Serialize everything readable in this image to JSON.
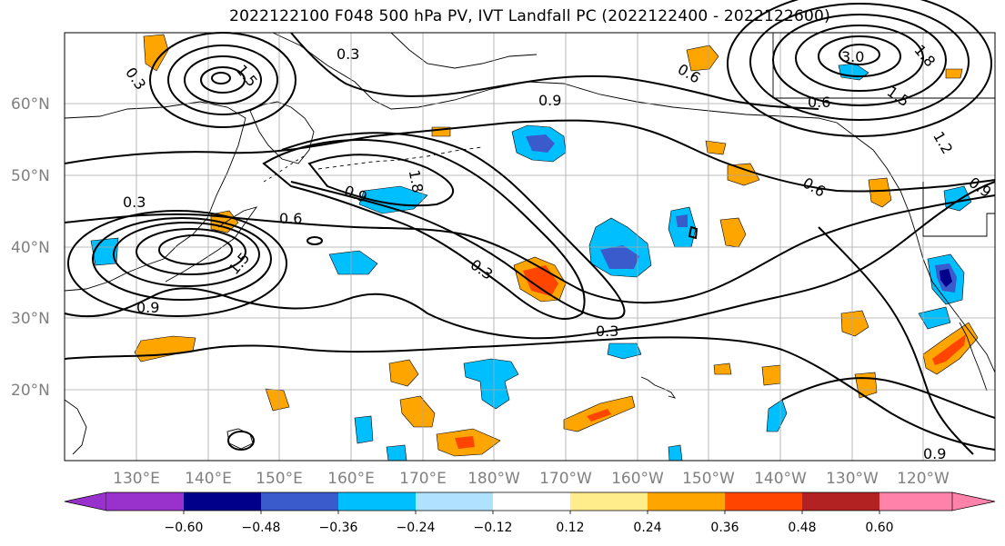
{
  "title": "2022122100 F048 500 hPa PV, IVT Landfall PC (2022122400 - 2022122600)",
  "lat_labels": [
    "60°N",
    "50°N",
    "40°N",
    "30°N",
    "20°N"
  ],
  "lon_labels": [
    "130°E",
    "140°E",
    "150°E",
    "160°E",
    "170°E",
    "180°W",
    "170°W",
    "160°W",
    "150°W",
    "140°W",
    "130°W",
    "120°W"
  ],
  "colorbar": {
    "ticks": [
      "−0.60",
      "−0.48",
      "−0.36",
      "−0.24",
      "−0.12",
      "0.12",
      "0.24",
      "0.36",
      "0.48",
      "0.60"
    ],
    "colors": [
      "#9932cc",
      "#00008b",
      "#3a5bcc",
      "#00bfff",
      "#b0e2ff",
      "#ffffff",
      "#ffec8b",
      "#ffa500",
      "#ff4500",
      "#b22222",
      "#ff82ab"
    ]
  },
  "contour_labels": [
    "0.3",
    "0.3",
    "0.3",
    "0.3",
    "0.3",
    "0.6",
    "0.6",
    "0.6",
    "0.6",
    "0.9",
    "0.9",
    "0.9",
    "0.9",
    "1.2",
    "1.5",
    "1.5",
    "1.5",
    "1.8",
    "1.8",
    "3.0",
    "0.9"
  ],
  "colors": {
    "contour": "#000000",
    "coast": "#000000",
    "grid": "#a9a9a9"
  }
}
